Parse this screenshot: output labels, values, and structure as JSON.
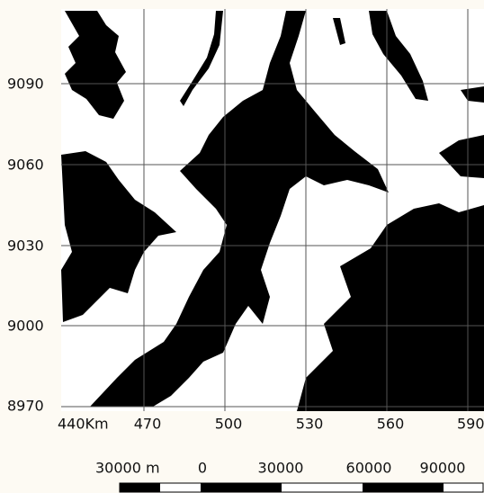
{
  "map": {
    "y_labels": [
      9090,
      9060,
      9030,
      9000,
      8970
    ],
    "x_labels": [
      "440Km",
      470,
      500,
      530,
      560,
      590
    ],
    "scale_bar": {
      "unit_label": "30000 m",
      "labels": [
        0,
        30000,
        60000,
        90000
      ]
    }
  }
}
